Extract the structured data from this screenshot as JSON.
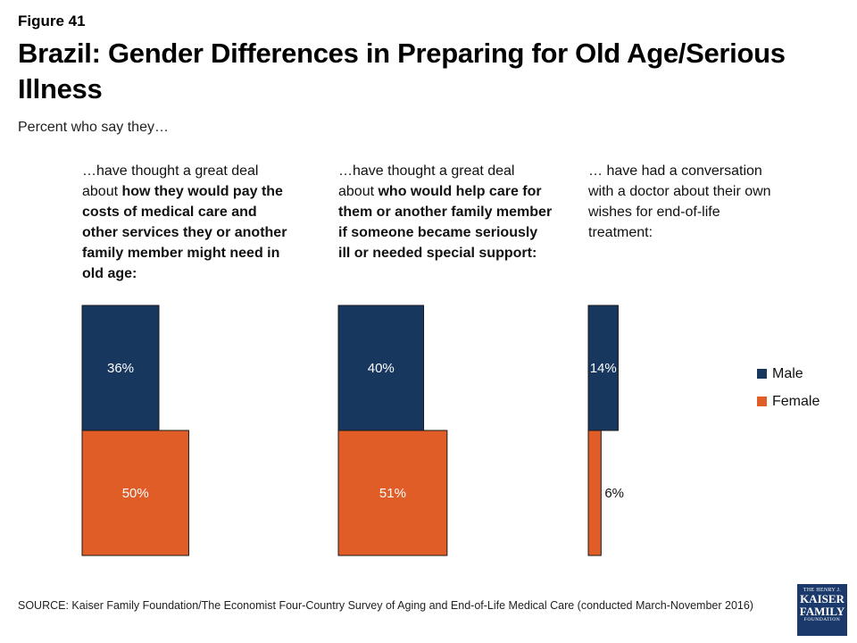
{
  "figure_label": "Figure 41",
  "title": "Brazil: Gender Differences in Preparing for Old Age/Serious Illness",
  "subtitle": "Percent who say they…",
  "panels": [
    {
      "pre": "…have thought a great deal about ",
      "bold": "how they would pay the costs of medical care and other services they or another family member might need in old age:",
      "post": ""
    },
    {
      "pre": "…have thought a great deal about ",
      "bold": "who would help care for them or another family member if someone became seriously ill or needed special support:",
      "post": ""
    },
    {
      "pre": "… have had a conversation with a doctor about their own wishes for end-of-life treatment:",
      "bold": "",
      "post": ""
    }
  ],
  "legend": {
    "male": "Male",
    "female": "Female"
  },
  "colors": {
    "male": "#17375e",
    "female": "#e05d27"
  },
  "source": "SOURCE: Kaiser Family Foundation/The Economist Four-Country Survey of Aging and End-of-Life Medical Care (conducted March-November 2016)",
  "logo": {
    "line1": "THE HENRY J.",
    "line2": "KAISER",
    "line3": "FAMILY",
    "line4": "FOUNDATION"
  },
  "chart_data": {
    "type": "bar",
    "categories": [
      "Pay costs of care in old age",
      "Who would help care",
      "Conversation with doctor about end-of-life wishes"
    ],
    "series": [
      {
        "name": "Male",
        "values": [
          36,
          40,
          14
        ],
        "labels": [
          "36%",
          "40%",
          "14%"
        ]
      },
      {
        "name": "Female",
        "values": [
          50,
          51,
          6
        ],
        "labels": [
          "50%",
          "51%",
          "6%"
        ]
      }
    ],
    "unit": "%",
    "legend_position": "right",
    "grid": false
  }
}
